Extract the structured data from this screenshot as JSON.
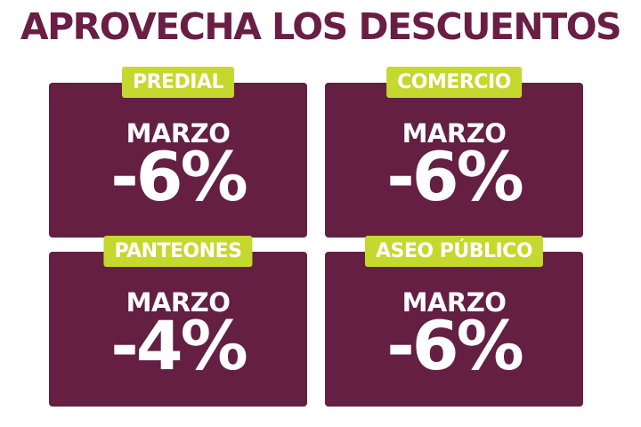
{
  "header": {
    "title": "APROVECHA LOS DESCUENTOS"
  },
  "cards": [
    {
      "label": "PREDIAL",
      "month": "MARZO",
      "discount": "-6%"
    },
    {
      "label": "COMERCIO",
      "month": "MARZO",
      "discount": "-6%"
    },
    {
      "label": "PANTEONES",
      "month": "MARZO",
      "discount": "-4%"
    },
    {
      "label": "ASEO PÚBLICO",
      "month": "MARZO",
      "discount": "-6%"
    }
  ]
}
